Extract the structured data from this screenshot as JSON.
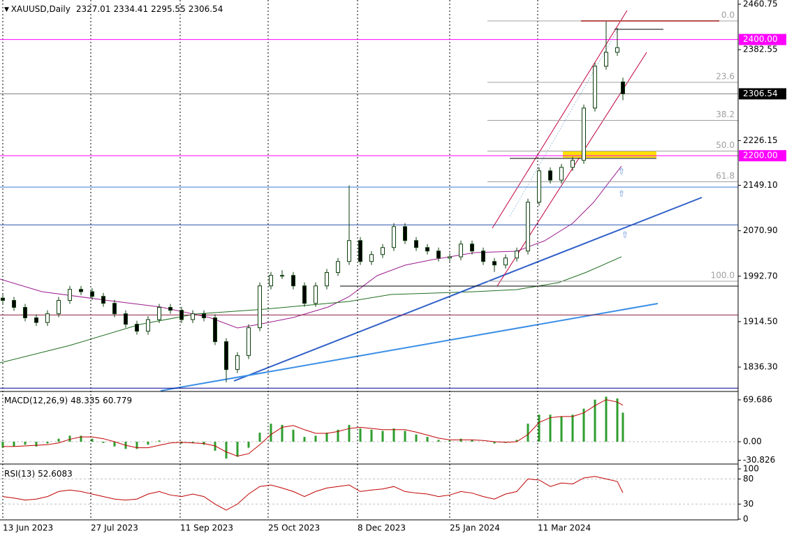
{
  "chart_data": [
    {
      "type": "candlestick",
      "symbol": "XAUUSD,Daily",
      "x": [
        0,
        4,
        8,
        12,
        16,
        20,
        24,
        28,
        32,
        36,
        40,
        44,
        48,
        52,
        56,
        60,
        64,
        68,
        72,
        76,
        80,
        84,
        88,
        92,
        96,
        100,
        104,
        108,
        112,
        116,
        120,
        124,
        128,
        132,
        136,
        140,
        144,
        148,
        152,
        156,
        160,
        164,
        168,
        172,
        176,
        180,
        184,
        188,
        192,
        196,
        200,
        204,
        208,
        212,
        216,
        220,
        222
      ],
      "candles": [
        [
          1955,
          1961,
          1945,
          1951
        ],
        [
          1951,
          1957,
          1933,
          1939
        ],
        [
          1939,
          1945,
          1915,
          1921
        ],
        [
          1921,
          1927,
          1907,
          1913
        ],
        [
          1913,
          1934,
          1907,
          1928
        ],
        [
          1928,
          1957,
          1922,
          1951
        ],
        [
          1951,
          1976,
          1945,
          1970
        ],
        [
          1970,
          1976,
          1960,
          1966
        ],
        [
          1966,
          1972,
          1952,
          1958
        ],
        [
          1958,
          1964,
          1940,
          1946
        ],
        [
          1946,
          1952,
          1922,
          1928
        ],
        [
          1928,
          1934,
          1904,
          1910
        ],
        [
          1910,
          1916,
          1892,
          1898
        ],
        [
          1898,
          1924,
          1892,
          1918
        ],
        [
          1918,
          1945,
          1912,
          1939
        ],
        [
          1939,
          1945,
          1928,
          1934
        ],
        [
          1934,
          1940,
          1912,
          1918
        ],
        [
          1918,
          1934,
          1912,
          1928
        ],
        [
          1928,
          1934,
          1915,
          1921
        ],
        [
          1921,
          1927,
          1874,
          1880
        ],
        [
          1880,
          1886,
          1810,
          1832
        ],
        [
          1832,
          1862,
          1826,
          1856
        ],
        [
          1856,
          1910,
          1850,
          1904
        ],
        [
          1904,
          1982,
          1898,
          1976
        ],
        [
          1976,
          2000,
          1970,
          1994
        ],
        [
          1994,
          2003,
          1988,
          1994
        ],
        [
          1994,
          2000,
          1970,
          1976
        ],
        [
          1976,
          1982,
          1940,
          1946
        ],
        [
          1946,
          1982,
          1940,
          1976
        ],
        [
          1976,
          2005,
          1970,
          1999
        ],
        [
          1999,
          2024,
          1993,
          2018
        ],
        [
          2018,
          2149,
          2012,
          2054
        ],
        [
          2054,
          2060,
          2012,
          2018
        ],
        [
          2018,
          2036,
          2012,
          2030
        ],
        [
          2030,
          2048,
          2024,
          2042
        ],
        [
          2042,
          2084,
          2036,
          2078
        ],
        [
          2078,
          2084,
          2048,
          2054
        ],
        [
          2054,
          2060,
          2036,
          2042
        ],
        [
          2042,
          2048,
          2030,
          2036
        ],
        [
          2036,
          2042,
          2018,
          2024
        ],
        [
          2024,
          2032,
          2018,
          2026
        ],
        [
          2026,
          2054,
          2020,
          2048
        ],
        [
          2048,
          2054,
          2030,
          2036
        ],
        [
          2036,
          2042,
          2012,
          2018
        ],
        [
          2018,
          2024,
          2000,
          2012
        ],
        [
          2012,
          2030,
          2006,
          2024
        ],
        [
          2024,
          2042,
          2018,
          2036
        ],
        [
          2036,
          2126,
          2030,
          2120
        ],
        [
          2120,
          2180,
          2114,
          2174
        ],
        [
          2174,
          2180,
          2152,
          2158
        ],
        [
          2158,
          2186,
          2152,
          2180
        ],
        [
          2180,
          2198,
          2174,
          2192
        ],
        [
          2192,
          2288,
          2186,
          2282
        ],
        [
          2282,
          2360,
          2276,
          2354
        ],
        [
          2354,
          2431,
          2348,
          2378
        ],
        [
          2378,
          2420,
          2372,
          2386
        ],
        [
          2327.01,
          2334.41,
          2295.55,
          2306.54
        ]
      ],
      "up_color": "#ffffff",
      "down_color": "#000000",
      "wick_color": "#0b3d0b",
      "xlim": [
        -1,
        263.25
      ],
      "xticks": [
        {
          "value": 0,
          "label": "13 Jun 2023"
        },
        {
          "value": 31.5,
          "label": "27 Jul 2023"
        },
        {
          "value": 63.5,
          "label": "11 Sep 2023"
        },
        {
          "value": 95,
          "label": "25 Oct 2023"
        },
        {
          "value": 127,
          "label": "8 Dec 2023"
        },
        {
          "value": 160,
          "label": "25 Jan 2024"
        },
        {
          "value": 191.5,
          "label": "11 Mar 2024"
        }
      ],
      "ylim": [
        1795.5,
        2468
      ],
      "yticks": [
        2460.75,
        2382.55,
        2226.15,
        {
          "value": 2149.1,
          "label": "2149.10"
        },
        {
          "value": 2070.9,
          "label": "2070.90"
        },
        {
          "value": 1992.7,
          "label": "1992.70"
        },
        {
          "value": 1914.5,
          "label": "1914.50"
        },
        {
          "value": 1836.3,
          "label": "1836.30"
        }
      ],
      "levels": [
        {
          "value": 2400,
          "label": "2400.00",
          "color": "#ff00ff"
        },
        {
          "value": 2200,
          "label": "2200.00",
          "color": "#ff00ff"
        },
        {
          "value": 2306.54,
          "label": "2306.54",
          "color": "#000000"
        },
        {
          "value": 2146,
          "color": "#3a7bd5"
        },
        {
          "value": 2081,
          "color": "#2a52b0"
        },
        {
          "value": 1926,
          "color": "#8b2040"
        },
        {
          "value": 1800,
          "color": "#00008b"
        }
      ],
      "fib": {
        "high": 2432,
        "low": 1984,
        "color": "#a0a0a0",
        "levels": [
          {
            "value": 0,
            "label": "0.0"
          },
          {
            "value": 23.6,
            "label": "23.6"
          },
          {
            "value": 38.2,
            "label": "38.2"
          },
          {
            "value": 50,
            "label": "50.0"
          },
          {
            "value": 61.8,
            "label": "61.8"
          },
          {
            "value": 100,
            "label": "100.0"
          }
        ]
      },
      "grid": true
    },
    {
      "type": "macd",
      "name": "MACD(12,26,9)",
      "histogram": [
        -10,
        -8,
        -5,
        -8,
        -3,
        5,
        10,
        10,
        5,
        -2,
        -8,
        -12,
        -12,
        -5,
        2,
        0,
        -3,
        -2,
        -5,
        -15,
        -28,
        -25,
        -10,
        15,
        30,
        28,
        20,
        8,
        10,
        15,
        20,
        28,
        22,
        20,
        18,
        22,
        18,
        12,
        8,
        3,
        2,
        5,
        3,
        0,
        -3,
        -2,
        3,
        30,
        45,
        45,
        42,
        45,
        55,
        70,
        75,
        72,
        48.335
      ],
      "signal": [
        -8,
        -8,
        -7,
        -6,
        -5,
        -2,
        4,
        8,
        8,
        5,
        0,
        -6,
        -10,
        -10,
        -6,
        -2,
        -1,
        -2,
        -3,
        -7,
        -17,
        -24,
        -20,
        -5,
        12,
        24,
        27,
        20,
        14,
        14,
        17,
        22,
        24,
        22,
        20,
        20,
        20,
        16,
        11,
        6,
        3,
        3,
        3,
        2,
        0,
        -1,
        0,
        12,
        32,
        40,
        42,
        42,
        48,
        60,
        70,
        66,
        60.779
      ],
      "hist_color": "#2e9e2e",
      "signal_color": "#c00000",
      "ylim": [
        -34.84,
        81.3
      ],
      "yticks": [
        69.686,
        {
          "value": 0,
          "label": "0.00"
        },
        -30.826
      ]
    },
    {
      "type": "line",
      "name": "RSI(13)",
      "values": [
        45,
        42,
        38,
        40,
        45,
        55,
        58,
        55,
        50,
        45,
        40,
        38,
        40,
        50,
        55,
        48,
        45,
        50,
        45,
        30,
        18,
        30,
        50,
        65,
        68,
        62,
        55,
        45,
        55,
        62,
        65,
        68,
        55,
        58,
        60,
        65,
        55,
        52,
        50,
        45,
        48,
        55,
        52,
        45,
        40,
        50,
        55,
        80,
        78,
        65,
        72,
        70,
        82,
        85,
        80,
        75,
        52.6083
      ],
      "color": "#c00000",
      "ylim": [
        0,
        100
      ],
      "yticks": [
        100,
        80,
        30,
        0
      ]
    }
  ]
}
